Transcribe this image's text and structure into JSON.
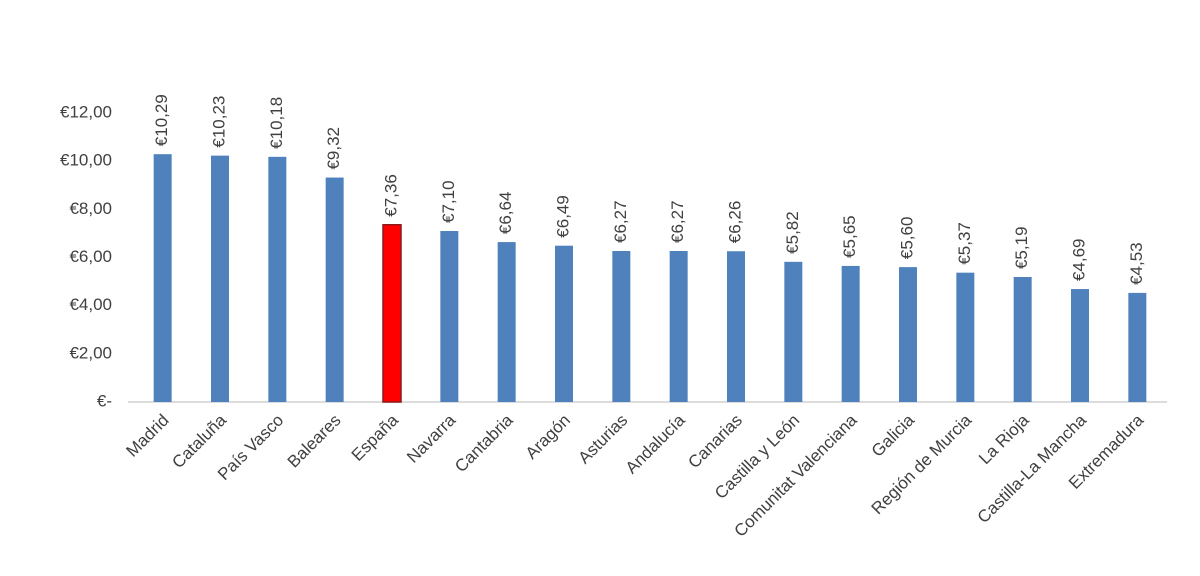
{
  "chart_data": {
    "type": "bar",
    "categories": [
      "Madrid",
      "Cataluña",
      "País Vasco",
      "Baleares",
      "España",
      "Navarra",
      "Cantabria",
      "Aragón",
      "Asturias",
      "Andalucía",
      "Canarias",
      "Castilla y León",
      "Comunitat Valenciana",
      "Galicia",
      "Región de Murcia",
      "La Rioja",
      "Castilla-La Mancha",
      "Extremadura"
    ],
    "values": [
      10.29,
      10.23,
      10.18,
      9.32,
      7.36,
      7.1,
      6.64,
      6.49,
      6.27,
      6.27,
      6.26,
      5.82,
      5.65,
      5.6,
      5.37,
      5.19,
      4.69,
      4.53
    ],
    "value_labels": [
      "€10,29",
      "€10,23",
      "€10,18",
      "€9,32",
      "€7,36",
      "€7,10",
      "€6,64",
      "€6,49",
      "€6,27",
      "€6,27",
      "€6,26",
      "€5,82",
      "€5,65",
      "€5,60",
      "€5,37",
      "€5,19",
      "€4,69",
      "€4,53"
    ],
    "colors": [
      "#4f81bd",
      "#4f81bd",
      "#4f81bd",
      "#4f81bd",
      "#ff0000",
      "#4f81bd",
      "#4f81bd",
      "#4f81bd",
      "#4f81bd",
      "#4f81bd",
      "#4f81bd",
      "#4f81bd",
      "#4f81bd",
      "#4f81bd",
      "#4f81bd",
      "#4f81bd",
      "#4f81bd",
      "#4f81bd"
    ],
    "ylim": [
      0,
      12
    ],
    "yticks": [
      {
        "value": 0,
        "label": "€-"
      },
      {
        "value": 2,
        "label": "€2,00"
      },
      {
        "value": 4,
        "label": "€4,00"
      },
      {
        "value": 6,
        "label": "€6,00"
      },
      {
        "value": 8,
        "label": "€8,00"
      },
      {
        "value": 10,
        "label": "€10,00"
      },
      {
        "value": 12,
        "label": "€12,00"
      }
    ],
    "grid": false
  }
}
